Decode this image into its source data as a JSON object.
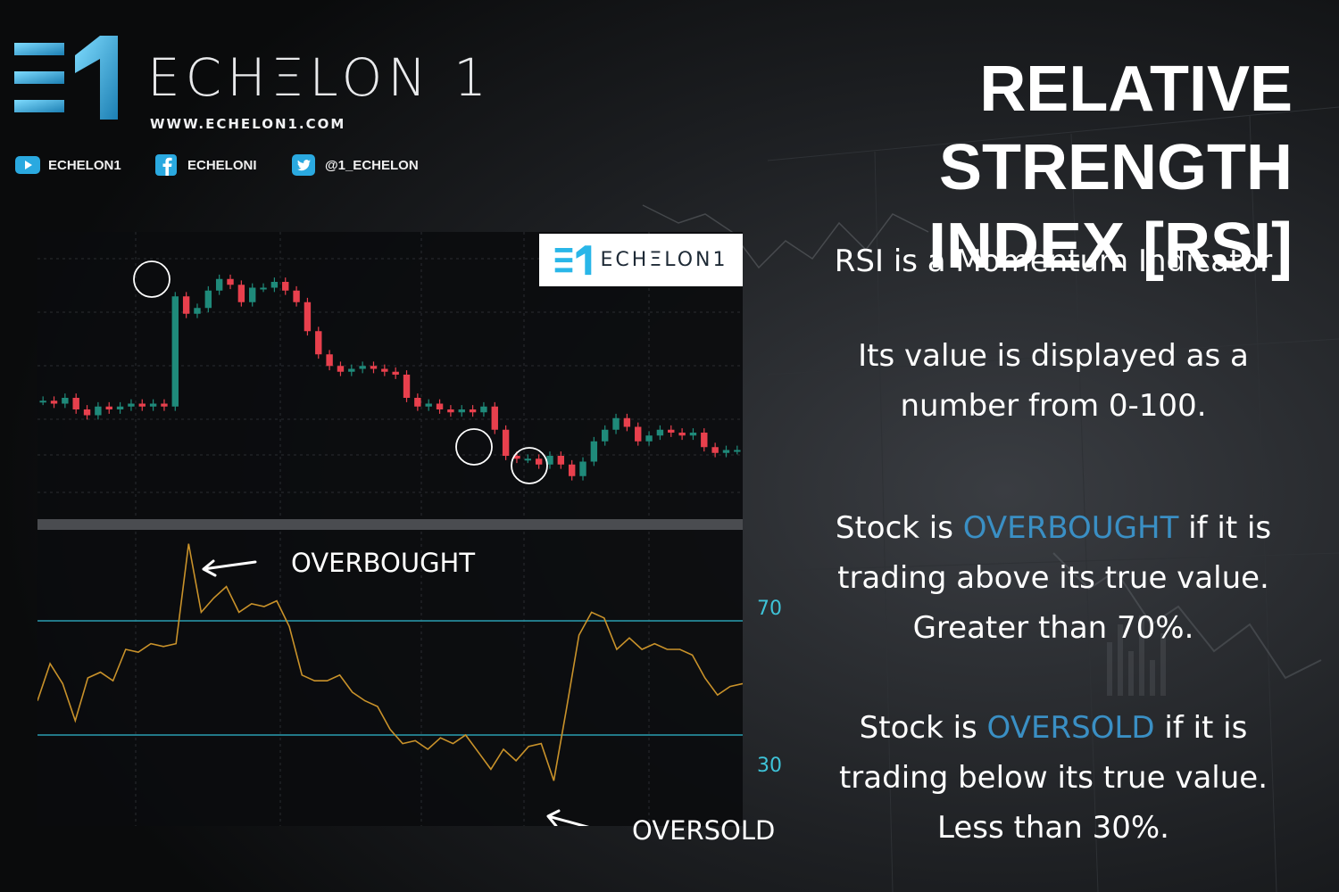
{
  "brand": {
    "wordmark": "ECHΞLON 1",
    "url": "WWW.ECHELON1.COM",
    "socials": [
      {
        "icon": "youtube-icon",
        "handle": "ECHELON1"
      },
      {
        "icon": "facebook-icon",
        "handle": "ECHELONI"
      },
      {
        "icon": "twitter-icon",
        "handle": "@1_ECHELON"
      }
    ],
    "mini_logo_text": "ECHΞLON1",
    "colors": {
      "accent": "#3a8fc4",
      "logo_cyan": "#29b6e8",
      "level_line": "#2a9db0",
      "rsi_line": "#c9922a",
      "candle_up": "#1f8a7a",
      "candle_down": "#e8404d"
    }
  },
  "title": {
    "line1": "RELATIVE STRENGTH",
    "line2": "INDEX [RSI]"
  },
  "chart": {
    "level_high": "70",
    "level_low": "30",
    "callout_overbought": "OVERBOUGHT",
    "callout_oversold": "OVERSOLD"
  },
  "chart_data": {
    "type": "line",
    "price_close": [
      46,
      45,
      47,
      43,
      41,
      44,
      43,
      44,
      45,
      44,
      45,
      44,
      82,
      76,
      78,
      84,
      88,
      86,
      80,
      85,
      85,
      87,
      84,
      80,
      70,
      62,
      58,
      56,
      57,
      58,
      57,
      56,
      55,
      47,
      44,
      45,
      43,
      42,
      43,
      42,
      44,
      36,
      27,
      26,
      26,
      24,
      27,
      24,
      20,
      25,
      32,
      36,
      40,
      37,
      32,
      34,
      36,
      35,
      34,
      35,
      30,
      28,
      29,
      29
    ],
    "rsi": [
      42,
      55,
      48,
      35,
      50,
      52,
      49,
      60,
      59,
      62,
      61,
      62,
      97,
      73,
      78,
      82,
      73,
      76,
      75,
      77,
      68,
      51,
      49,
      49,
      51,
      45,
      42,
      40,
      32,
      27,
      28,
      25,
      29,
      27,
      30,
      24,
      18,
      25,
      21,
      26,
      27,
      14,
      39,
      65,
      73,
      71,
      60,
      64,
      60,
      62,
      60,
      60,
      58,
      50,
      44,
      47,
      48
    ],
    "levels": [
      70,
      30
    ],
    "annotations": [
      "OVERBOUGHT",
      "OVERSOLD"
    ]
  },
  "text": {
    "p1": "RSI is a Momentum Indicator",
    "p2_l1": "Its value is displayed as a",
    "p2_l2": "number from 0-100.",
    "p3_pre": "Stock is ",
    "p3_accent": "OVERBOUGHT",
    "p3_post": " if it is",
    "p3_l2": "trading above its true value.",
    "p3_l3": "Greater than 70%.",
    "p4_pre": "Stock is ",
    "p4_accent": "OVERSOLD",
    "p4_post": " if it is",
    "p4_l2": "trading below its true value.",
    "p4_l3": "Less than 30%."
  }
}
